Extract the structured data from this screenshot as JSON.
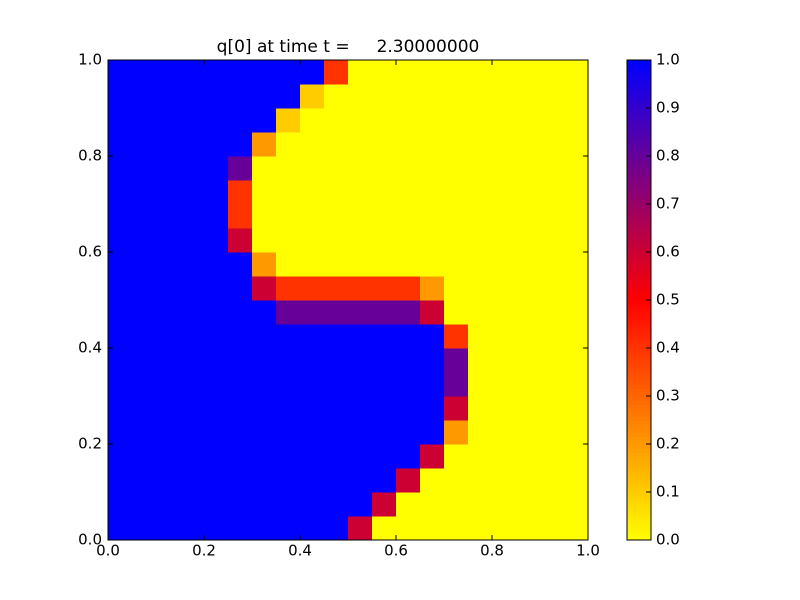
{
  "chart_data": {
    "type": "heatmap",
    "title": "q[0] at time t =     2.30000000",
    "xlim": [
      0,
      1
    ],
    "ylim": [
      0,
      1
    ],
    "xticks": [
      {
        "value": 0,
        "label": "0.0"
      },
      {
        "value": 0.2,
        "label": "0.2"
      },
      {
        "value": 0.4,
        "label": "0.4"
      },
      {
        "value": 0.6,
        "label": "0.6"
      },
      {
        "value": 0.8,
        "label": "0.8"
      },
      {
        "value": 1,
        "label": "1.0"
      }
    ],
    "yticks": [
      {
        "value": 0,
        "label": "0.0"
      },
      {
        "value": 0.2,
        "label": "0.2"
      },
      {
        "value": 0.4,
        "label": "0.4"
      },
      {
        "value": 0.6,
        "label": "0.6"
      },
      {
        "value": 0.8,
        "label": "0.8"
      },
      {
        "value": 1,
        "label": "1.0"
      }
    ],
    "clim": [
      0,
      1
    ],
    "cticks": [
      {
        "value": 0,
        "label": "0.0"
      },
      {
        "value": 0.1,
        "label": "0.1"
      },
      {
        "value": 0.2,
        "label": "0.2"
      },
      {
        "value": 0.3,
        "label": "0.3"
      },
      {
        "value": 0.4,
        "label": "0.4"
      },
      {
        "value": 0.5,
        "label": "0.5"
      },
      {
        "value": 0.6,
        "label": "0.6"
      },
      {
        "value": 0.7,
        "label": "0.7"
      },
      {
        "value": 0.8,
        "label": "0.8"
      },
      {
        "value": 0.9,
        "label": "0.9"
      },
      {
        "value": 1,
        "label": "1.0"
      }
    ],
    "colormap": [
      {
        "value": 0,
        "color": "#ffff00"
      },
      {
        "value": 0.5,
        "color": "#ff0000"
      },
      {
        "value": 1,
        "color": "#0000ff"
      }
    ],
    "z": [
      [
        1,
        1,
        1,
        1,
        1,
        1,
        1,
        1,
        1,
        1,
        0.6,
        0,
        0,
        0,
        0,
        0,
        0,
        0,
        0,
        0
      ],
      [
        1,
        1,
        1,
        1,
        1,
        1,
        1,
        1,
        1,
        1,
        1,
        0.6,
        0,
        0,
        0,
        0,
        0,
        0,
        0,
        0
      ],
      [
        1,
        1,
        1,
        1,
        1,
        1,
        1,
        1,
        1,
        1,
        1,
        1,
        0.6,
        0,
        0,
        0,
        0,
        0,
        0,
        0
      ],
      [
        1,
        1,
        1,
        1,
        1,
        1,
        1,
        1,
        1,
        1,
        1,
        1,
        1,
        0.6,
        0,
        0,
        0,
        0,
        0,
        0
      ],
      [
        1,
        1,
        1,
        1,
        1,
        1,
        1,
        1,
        1,
        1,
        1,
        1,
        1,
        1,
        0.2,
        0,
        0,
        0,
        0,
        0
      ],
      [
        1,
        1,
        1,
        1,
        1,
        1,
        1,
        1,
        1,
        1,
        1,
        1,
        1,
        1,
        0.6,
        0,
        0,
        0,
        0,
        0
      ],
      [
        1,
        1,
        1,
        1,
        1,
        1,
        1,
        1,
        1,
        1,
        1,
        1,
        1,
        1,
        0.8,
        0,
        0,
        0,
        0,
        0
      ],
      [
        1,
        1,
        1,
        1,
        1,
        1,
        1,
        1,
        1,
        1,
        1,
        1,
        1,
        1,
        0.8,
        0,
        0,
        0,
        0,
        0
      ],
      [
        1,
        1,
        1,
        1,
        1,
        1,
        1,
        1,
        1,
        1,
        1,
        1,
        1,
        1,
        0.4,
        0,
        0,
        0,
        0,
        0
      ],
      [
        1,
        1,
        1,
        1,
        1,
        1,
        1,
        0.8,
        0.8,
        0.8,
        0.8,
        0.8,
        0.8,
        0.6,
        0,
        0,
        0,
        0,
        0,
        0
      ],
      [
        1,
        1,
        1,
        1,
        1,
        1,
        0.6,
        0.4,
        0.4,
        0.4,
        0.4,
        0.4,
        0.4,
        0.2,
        0,
        0,
        0,
        0,
        0,
        0
      ],
      [
        1,
        1,
        1,
        1,
        1,
        1,
        0.2,
        0,
        0,
        0,
        0,
        0,
        0,
        0,
        0,
        0,
        0,
        0,
        0,
        0
      ],
      [
        1,
        1,
        1,
        1,
        1,
        0.6,
        0,
        0,
        0,
        0,
        0,
        0,
        0,
        0,
        0,
        0,
        0,
        0,
        0,
        0
      ],
      [
        1,
        1,
        1,
        1,
        1,
        0.4,
        0,
        0,
        0,
        0,
        0,
        0,
        0,
        0,
        0,
        0,
        0,
        0,
        0,
        0
      ],
      [
        1,
        1,
        1,
        1,
        1,
        0.4,
        0,
        0,
        0,
        0,
        0,
        0,
        0,
        0,
        0,
        0,
        0,
        0,
        0,
        0
      ],
      [
        1,
        1,
        1,
        1,
        1,
        0.8,
        0,
        0,
        0,
        0,
        0,
        0,
        0,
        0,
        0,
        0,
        0,
        0,
        0,
        0
      ],
      [
        1,
        1,
        1,
        1,
        1,
        1,
        0.2,
        0,
        0,
        0,
        0,
        0,
        0,
        0,
        0,
        0,
        0,
        0,
        0,
        0
      ],
      [
        1,
        1,
        1,
        1,
        1,
        1,
        1,
        0.1,
        0,
        0,
        0,
        0,
        0,
        0,
        0,
        0,
        0,
        0,
        0,
        0
      ],
      [
        1,
        1,
        1,
        1,
        1,
        1,
        1,
        1,
        0.1,
        0,
        0,
        0,
        0,
        0,
        0,
        0,
        0,
        0,
        0,
        0
      ],
      [
        1,
        1,
        1,
        1,
        1,
        1,
        1,
        1,
        1,
        0.4,
        0,
        0,
        0,
        0,
        0,
        0,
        0,
        0,
        0,
        0
      ]
    ]
  }
}
